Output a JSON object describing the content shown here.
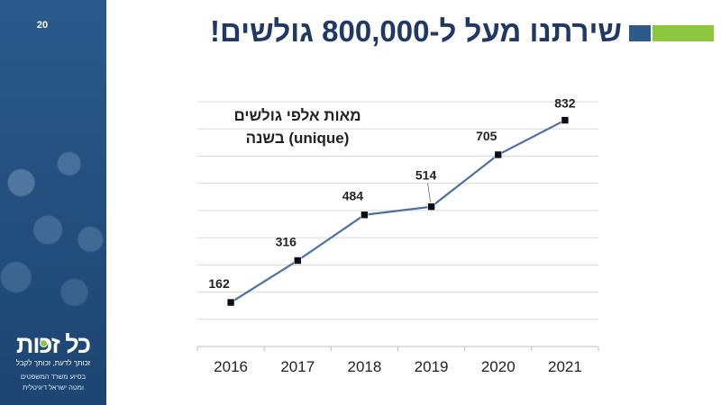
{
  "slide": {
    "number": "20"
  },
  "title": "שירתנו מעל ל-800,000 גולשים!",
  "sidebar": {
    "logo_text": "כל זכות",
    "tagline": "זכותך לדעת, זכותך לקבל",
    "support_line1": "בסיוע משרד המשפטים",
    "support_line2": "ומטה ישראל דיגיטלית"
  },
  "colors": {
    "title": "#1f3864",
    "accent_blue": "#2e5a8a",
    "accent_green": "#8dc63f",
    "series_line": "#4a6fa5",
    "marker": "#0d0d1a",
    "gridline": "#d9d9d9",
    "sidebar": "#24507f"
  },
  "chart_data": {
    "type": "line",
    "title_line1": "מאות אלפי גולשים",
    "title_line2": "(unique) בשנה",
    "categories": [
      "2016",
      "2017",
      "2018",
      "2019",
      "2020",
      "2021"
    ],
    "series": [
      {
        "name": "מאות אלפי גולשים (unique) בשנה",
        "values": [
          162,
          316,
          484,
          514,
          705,
          832
        ]
      }
    ],
    "data_labels": [
      "162",
      "316",
      "484",
      "514",
      "705",
      "832"
    ],
    "ylim": [
      0,
      900
    ],
    "y_gridline_step": 100,
    "grid": true,
    "legend": "none",
    "xlabel": "",
    "ylabel": ""
  }
}
